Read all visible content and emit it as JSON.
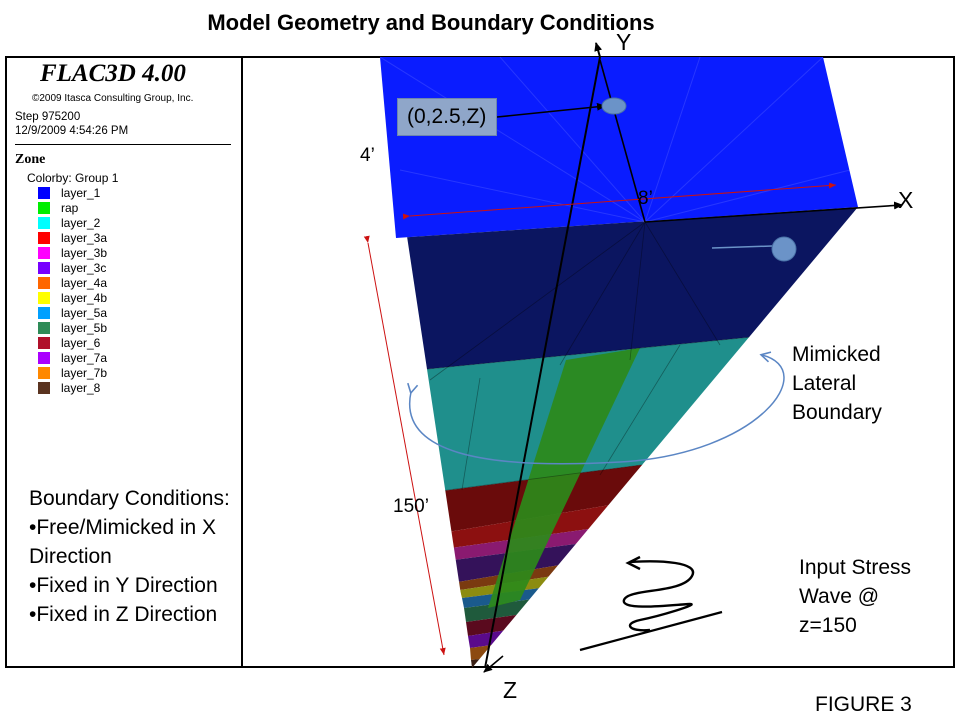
{
  "title": "Model Geometry and Boundary Conditions",
  "legend": {
    "program": "FLAC3D 4.00",
    "copyright": "©2009 Itasca Consulting Group, Inc.",
    "step": "Step 975200",
    "date": "12/9/2009 4:54:26 PM",
    "zone_heading": "Zone",
    "colorby": "Colorby: Group   1",
    "items": [
      {
        "label": "layer_1",
        "color": "#0000ff"
      },
      {
        "label": "rap",
        "color": "#00ee00"
      },
      {
        "label": "layer_2",
        "color": "#00ffff"
      },
      {
        "label": "layer_3a",
        "color": "#ff0000"
      },
      {
        "label": "layer_3b",
        "color": "#ff00ff"
      },
      {
        "label": "layer_3c",
        "color": "#7700ff"
      },
      {
        "label": "layer_4a",
        "color": "#ff6600"
      },
      {
        "label": "layer_4b",
        "color": "#ffff00"
      },
      {
        "label": "layer_5a",
        "color": "#00a0ff"
      },
      {
        "label": "layer_5b",
        "color": "#2e8b57"
      },
      {
        "label": "layer_6",
        "color": "#b0102a"
      },
      {
        "label": "layer_7a",
        "color": "#aa00ff"
      },
      {
        "label": "layer_7b",
        "color": "#ff8800"
      },
      {
        "label": "layer_8",
        "color": "#5a3320"
      }
    ]
  },
  "boundary_conditions": [
    "Boundary Conditions:",
    "•Free/Mimicked in X",
    "Direction",
    "•Fixed in Y Direction",
    "•Fixed in Z Direction"
  ],
  "labels": {
    "coord": "(0,2.5,Z)",
    "dim_4": "4’",
    "dim_8": "8’",
    "dim_150": "150’",
    "axis_x": "X",
    "axis_y": "Y",
    "axis_z": "Z",
    "mimicked": [
      "Mimicked",
      "Lateral",
      "Boundary"
    ],
    "input_stress": [
      "Input Stress",
      "Wave @",
      "z=150"
    ],
    "figure": "FIGURE 3"
  },
  "colors": {
    "top_face": "#0a1cff",
    "dark_layer": "#0b1560",
    "teal_layer": "#1f8f8c",
    "rap_band": "#2c8a1a",
    "maroon_layer": "#6a0b0b",
    "dim_line": "#cc1111",
    "arrow_blue": "#5b86c4"
  }
}
